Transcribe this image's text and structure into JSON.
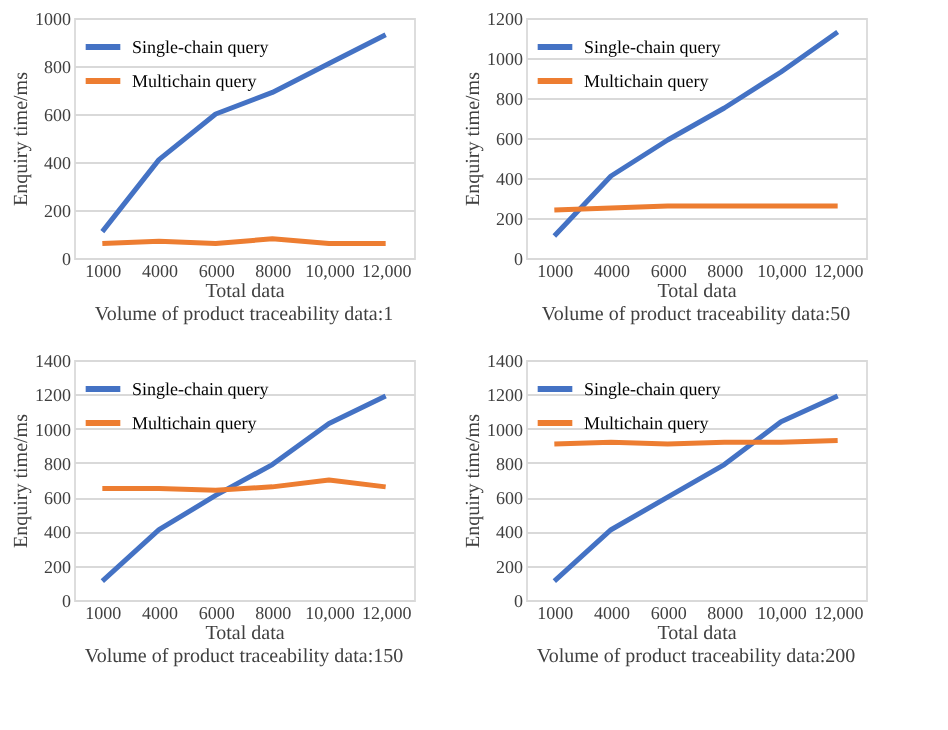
{
  "chart_data": [
    {
      "type": "line",
      "xlabel": "Total data",
      "ylabel": "Enquiry time/ms",
      "annotations": [
        "Volume of product traceability data:1"
      ],
      "categories": [
        "1000",
        "4000",
        "6000",
        "8000",
        "10,000",
        "12,000"
      ],
      "ylim": [
        0,
        1000
      ],
      "yticks": [
        0,
        200,
        400,
        600,
        800,
        1000
      ],
      "grid": "y",
      "legend": "top left",
      "marker": "none",
      "series": [
        {
          "name": "Single-chain query",
          "color": "#4472c4",
          "values": [
            110,
            410,
            600,
            690,
            810,
            930
          ]
        },
        {
          "name": "Multichain query",
          "color": "#ed7d31",
          "values": [
            60,
            70,
            60,
            80,
            60,
            60
          ]
        }
      ]
    },
    {
      "type": "line",
      "xlabel": "Total data",
      "ylabel": "Enquiry time/ms",
      "annotations": [
        "Volume of product traceability data:50"
      ],
      "categories": [
        "1000",
        "4000",
        "6000",
        "8000",
        "10,000",
        "12,000"
      ],
      "ylim": [
        0,
        1200
      ],
      "yticks": [
        0,
        200,
        400,
        600,
        800,
        1000,
        1200
      ],
      "grid": "y",
      "legend": "top left",
      "marker": "none",
      "series": [
        {
          "name": "Single-chain query",
          "color": "#4472c4",
          "values": [
            110,
            410,
            590,
            750,
            930,
            1130
          ]
        },
        {
          "name": "Multichain query",
          "color": "#ed7d31",
          "values": [
            240,
            250,
            260,
            260,
            260,
            260
          ]
        }
      ]
    },
    {
      "type": "line",
      "xlabel": "Total data",
      "ylabel": "Enquiry time/ms",
      "annotations": [
        "Volume of product traceability data:150"
      ],
      "categories": [
        "1000",
        "4000",
        "6000",
        "8000",
        "10,000",
        "12,000"
      ],
      "ylim": [
        0,
        1400
      ],
      "yticks": [
        0,
        200,
        400,
        600,
        800,
        1000,
        1200,
        1400
      ],
      "grid": "y",
      "legend": "top left",
      "marker": "none",
      "series": [
        {
          "name": "Single-chain query",
          "color": "#4472c4",
          "values": [
            110,
            410,
            610,
            790,
            1030,
            1190
          ]
        },
        {
          "name": "Multichain query",
          "color": "#ed7d31",
          "values": [
            650,
            650,
            640,
            660,
            700,
            660
          ]
        }
      ]
    },
    {
      "type": "line",
      "xlabel": "Total data",
      "ylabel": "Enquiry time/ms",
      "annotations": [
        "Volume of product traceability data:200"
      ],
      "categories": [
        "1000",
        "4000",
        "6000",
        "8000",
        "10,000",
        "12,000"
      ],
      "ylim": [
        0,
        1400
      ],
      "yticks": [
        0,
        200,
        400,
        600,
        800,
        1000,
        1200,
        1400
      ],
      "grid": "y",
      "legend": "top left",
      "marker": "none",
      "series": [
        {
          "name": "Single-chain query",
          "color": "#4472c4",
          "values": [
            110,
            410,
            600,
            790,
            1040,
            1190
          ]
        },
        {
          "name": "Multichain query",
          "color": "#ed7d31",
          "values": [
            910,
            920,
            910,
            920,
            920,
            930
          ]
        }
      ]
    }
  ]
}
